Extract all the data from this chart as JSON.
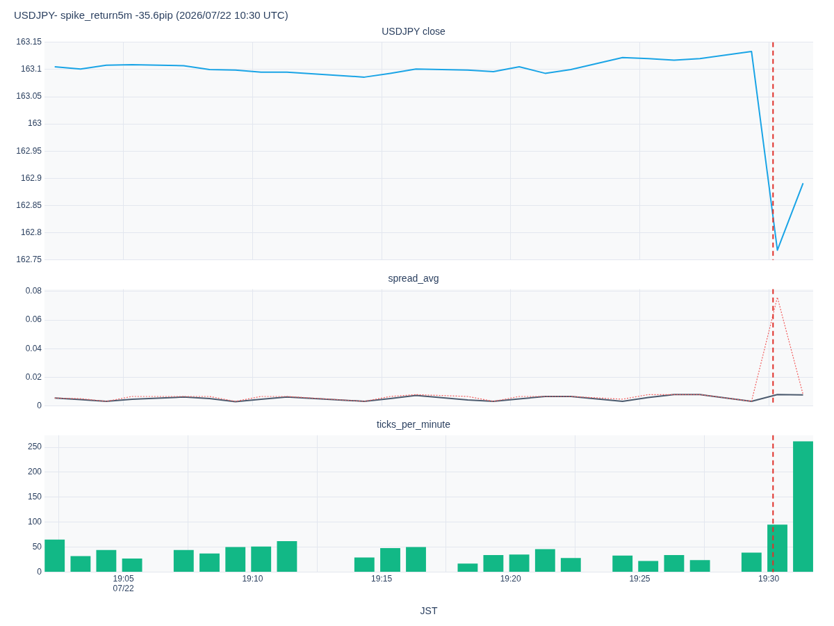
{
  "chart_data": [
    {
      "type": "line",
      "title": "USDJPY- spike_return5m -35.6pip (2026/07/22 10:30 UTC)",
      "subtitle": "USDJPY close",
      "x": [
        19.0389,
        19.0556,
        19.0722,
        19.0889,
        19.1222,
        19.1389,
        19.1556,
        19.1722,
        19.1889,
        19.2389,
        19.2556,
        19.2722,
        19.3056,
        19.3222,
        19.3389,
        19.3556,
        19.3722,
        19.4056,
        19.4222,
        19.4389,
        19.4556,
        19.4889,
        19.5056,
        19.5222
      ],
      "series": [
        {
          "color": "#19a4e6",
          "values": [
            163.105,
            163.101,
            163.108,
            163.109,
            163.107,
            163.1,
            163.099,
            163.095,
            163.095,
            163.086,
            163.093,
            163.101,
            163.099,
            163.096,
            163.105,
            163.093,
            163.1,
            163.122,
            163.12,
            163.117,
            163.12,
            163.133,
            162.768,
            162.891
          ]
        }
      ],
      "xlim": [
        19.0323,
        19.5287
      ],
      "xticks": [
        {
          "value": 19.0833,
          "label": null
        },
        {
          "value": 19.1667,
          "label": null
        },
        {
          "value": 19.25,
          "label": null
        },
        {
          "value": 19.3333,
          "label": null
        },
        {
          "value": 19.4167,
          "label": null
        },
        {
          "value": 19.5,
          "label": null
        }
      ],
      "ylim": [
        162.75,
        163.15
      ],
      "yticks": [
        162.75,
        162.8,
        162.85,
        162.9,
        162.95,
        163,
        163.05,
        163.1,
        163.15
      ],
      "ref_lines": [
        {
          "axis": "x",
          "value": 19.5028,
          "color": "#e0302a",
          "line_style": "dashed"
        }
      ],
      "grid": true,
      "legend": false,
      "marker": "none",
      "tick_labels": "y"
    },
    {
      "type": "line",
      "title": "spread_avg",
      "x": [
        19.0389,
        19.0556,
        19.0722,
        19.0889,
        19.1222,
        19.1389,
        19.1556,
        19.1722,
        19.1889,
        19.2389,
        19.2556,
        19.2722,
        19.3056,
        19.3222,
        19.3389,
        19.3556,
        19.3722,
        19.4056,
        19.4222,
        19.4389,
        19.4556,
        19.4889,
        19.5056,
        19.5222
      ],
      "series": [
        {
          "color": "#f25c5c",
          "line_style": "dotted",
          "values": [
            0.0056,
            0.0052,
            0.0033,
            0.0067,
            0.0067,
            0.0067,
            0.0033,
            0.0067,
            0.0067,
            0.0033,
            0.0067,
            0.008,
            0.0067,
            0.0033,
            0.0067,
            0.0067,
            0.0067,
            0.0048,
            0.008,
            0.008,
            0.008,
            0.0033,
            0.0759,
            0.008
          ]
        },
        {
          "color": "#4b5a6e",
          "line_style": "solid",
          "values": [
            0.0056,
            0.0045,
            0.0033,
            0.0048,
            0.0063,
            0.0052,
            0.003,
            0.0047,
            0.0063,
            0.0033,
            0.0052,
            0.0074,
            0.0043,
            0.0033,
            0.005,
            0.0067,
            0.0067,
            0.0033,
            0.006,
            0.008,
            0.008,
            0.0033,
            0.008,
            0.0078
          ]
        }
      ],
      "xlim": [
        19.0323,
        19.5287
      ],
      "xticks": [
        {
          "value": 19.0833,
          "label": null
        },
        {
          "value": 19.1667,
          "label": null
        },
        {
          "value": 19.25,
          "label": null
        },
        {
          "value": 19.3333,
          "label": null
        },
        {
          "value": 19.4167,
          "label": null
        },
        {
          "value": 19.5,
          "label": null
        }
      ],
      "ylim": [
        0,
        0.0815
      ],
      "yticks": [
        0,
        0.02,
        0.04,
        0.06,
        0.08
      ],
      "ref_lines": [
        {
          "axis": "x",
          "value": 19.5028,
          "color": "#e0302a",
          "line_style": "dashed"
        }
      ],
      "grid": true,
      "legend": false,
      "marker": "none",
      "tick_labels": "y"
    },
    {
      "type": "bar",
      "title": "ticks_per_minute",
      "xlabel": "JST",
      "x": [
        19.0389,
        19.0556,
        19.0722,
        19.0889,
        19.1222,
        19.1389,
        19.1556,
        19.1722,
        19.1889,
        19.2389,
        19.2556,
        19.2722,
        19.3056,
        19.3222,
        19.3389,
        19.3556,
        19.3722,
        19.4056,
        19.4222,
        19.4389,
        19.4556,
        19.4889,
        19.5056,
        19.5222
      ],
      "series": [
        {
          "color": "#12b886",
          "values": [
            65,
            32,
            44,
            27,
            44,
            37,
            50,
            51,
            62,
            29,
            48,
            50,
            17,
            34,
            35,
            46,
            28,
            33,
            22,
            34,
            24,
            39,
            95,
            262
          ]
        }
      ],
      "xlim": [
        19.0323,
        19.5287
      ],
      "xticks": [
        {
          "value": 19.0833,
          "label": "19:05\n07/22"
        },
        {
          "value": 19.1667,
          "label": "19:10"
        },
        {
          "value": 19.25,
          "label": "19:15"
        },
        {
          "value": 19.3333,
          "label": "19:20"
        },
        {
          "value": 19.4167,
          "label": "19:25"
        },
        {
          "value": 19.5,
          "label": "19:30"
        }
      ],
      "ylim": [
        0,
        274
      ],
      "yticks": [
        0,
        50,
        100,
        150,
        200,
        250
      ],
      "ref_lines": [
        {
          "axis": "x",
          "value": 19.5028,
          "color": "#e0302a",
          "line_style": "dashed"
        }
      ],
      "grid": true,
      "legend": false
    }
  ]
}
